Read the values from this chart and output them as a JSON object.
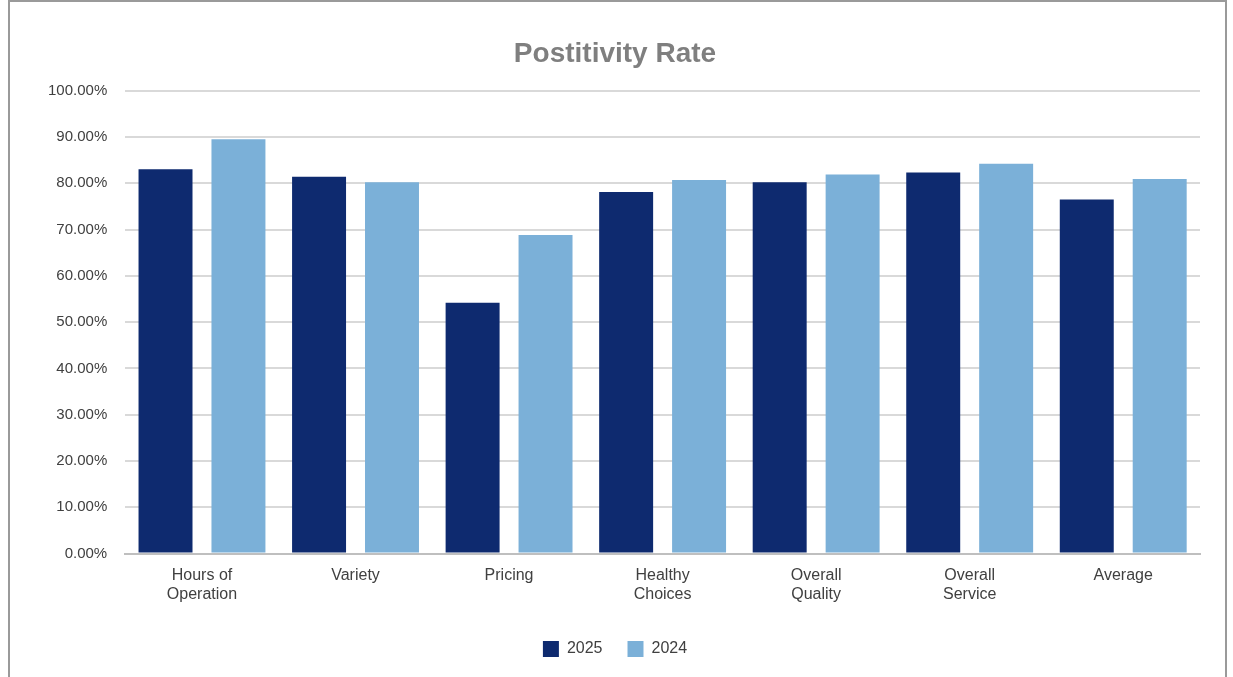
{
  "chart_data": {
    "type": "bar",
    "title": "Postitivity Rate",
    "categories": [
      "Hours of Operation",
      "Variety",
      "Pricing",
      "Healthy Choices",
      "Overall Quality",
      "Overall Service",
      "Average"
    ],
    "series": [
      {
        "name": "2025",
        "color": "#0e2a6f",
        "values": [
          83.0,
          81.4,
          54.2,
          78.1,
          80.2,
          82.3,
          76.5
        ]
      },
      {
        "name": "2024",
        "color": "#7bb0d8",
        "values": [
          89.5,
          80.2,
          68.8,
          80.7,
          81.9,
          84.2,
          80.9
        ]
      }
    ],
    "ylim": [
      0,
      100
    ],
    "yticks": [
      {
        "value": 0,
        "label": "0.00%"
      },
      {
        "value": 10,
        "label": "10.00%"
      },
      {
        "value": 20,
        "label": "20.00%"
      },
      {
        "value": 30,
        "label": "30.00%"
      },
      {
        "value": 40,
        "label": "40.00%"
      },
      {
        "value": 50,
        "label": "50.00%"
      },
      {
        "value": 60,
        "label": "60.00%"
      },
      {
        "value": 70,
        "label": "70.00%"
      },
      {
        "value": 80,
        "label": "80.00%"
      },
      {
        "value": 90,
        "label": "90.00%"
      },
      {
        "value": 100,
        "label": "100.00%"
      }
    ],
    "grid": "y",
    "legend": "bottom"
  }
}
